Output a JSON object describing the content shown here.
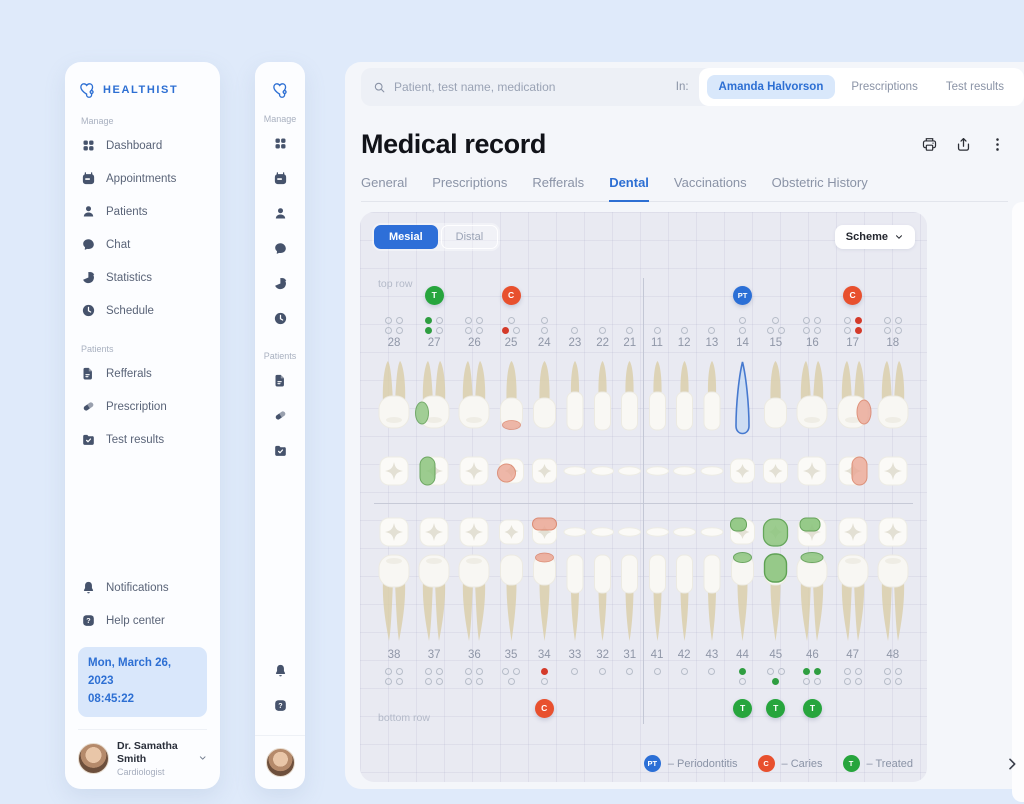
{
  "sidebar": {
    "brand": "HEALTHIST",
    "sections": [
      {
        "label": "Manage",
        "items": [
          {
            "label": "Dashboard",
            "icon": "dashboard-icon"
          },
          {
            "label": "Appointments",
            "icon": "appointments-icon"
          },
          {
            "label": "Patients",
            "icon": "patients-icon"
          },
          {
            "label": "Chat",
            "icon": "chat-icon"
          },
          {
            "label": "Statistics",
            "icon": "statistics-icon"
          },
          {
            "label": "Schedule",
            "icon": "schedule-icon"
          }
        ]
      },
      {
        "label": "Patients",
        "items": [
          {
            "label": "Refferals",
            "icon": "refferals-icon"
          },
          {
            "label": "Prescription",
            "icon": "prescription-icon"
          },
          {
            "label": "Test results",
            "icon": "test-results-icon"
          }
        ]
      }
    ],
    "footer_items": [
      {
        "label": "Notifications",
        "icon": "bell-icon"
      },
      {
        "label": "Help center",
        "icon": "help-icon"
      }
    ],
    "datetime": {
      "date": "Mon, March 26, 2023",
      "time": "08:45:22"
    },
    "profile": {
      "name": "Dr. Samatha Smith",
      "role": "Cardiologist"
    }
  },
  "search": {
    "placeholder": "Patient, test name, medication",
    "in_label": "In:",
    "chips": [
      {
        "label": "Amanda Halvorson",
        "active": true
      },
      {
        "label": "Prescriptions",
        "active": false
      },
      {
        "label": "Test results",
        "active": false
      }
    ]
  },
  "header": {
    "title": "Medical record",
    "action_icons": [
      "printer-icon",
      "share-icon",
      "kebab-icon"
    ],
    "tabs": [
      {
        "label": "General",
        "active": false
      },
      {
        "label": "Prescriptions",
        "active": false
      },
      {
        "label": "Refferals",
        "active": false
      },
      {
        "label": "Dental",
        "active": true
      },
      {
        "label": "Vaccinations",
        "active": false
      },
      {
        "label": "Obstetric History",
        "active": false
      }
    ]
  },
  "controls": {
    "view_toggle": [
      {
        "label": "Mesial",
        "active": true
      },
      {
        "label": "Distal",
        "active": false
      }
    ],
    "scheme_label": "Scheme"
  },
  "chart_data": {
    "type": "dental-chart",
    "top_row_label": "top row",
    "bottom_row_label": "bottom row",
    "colors": {
      "treated": "#27a53d",
      "caries": "#e8502e",
      "periodontitis": "#2b6fd6"
    },
    "legend_separator": "–",
    "legend": [
      {
        "code": "PT",
        "label": "Periodontitis",
        "color": "#2b6fd6"
      },
      {
        "code": "C",
        "label": "Caries",
        "color": "#e8502e"
      },
      {
        "code": "T",
        "label": "Treated",
        "color": "#27a53d"
      }
    ],
    "upper_teeth": [
      {
        "num": "28",
        "type": "molar",
        "dots": [
          [
            "o",
            "o"
          ],
          [
            "o",
            "o"
          ]
        ]
      },
      {
        "num": "27",
        "type": "molar",
        "dots": [
          [
            "g",
            "o"
          ],
          [
            "g",
            "o"
          ]
        ],
        "marker": "T",
        "highlight": "green-side"
      },
      {
        "num": "26",
        "type": "molar",
        "dots": [
          [
            "o",
            "o"
          ],
          [
            "o",
            "o"
          ]
        ]
      },
      {
        "num": "25",
        "type": "premolar",
        "dots": [
          [
            "o"
          ],
          [
            "r",
            "o"
          ]
        ],
        "marker": "C",
        "highlight": "red-bottom"
      },
      {
        "num": "24",
        "type": "premolar",
        "dots": [
          [
            "o"
          ],
          [
            "o"
          ]
        ]
      },
      {
        "num": "23",
        "type": "canine",
        "dots": [
          [
            "o"
          ]
        ]
      },
      {
        "num": "22",
        "type": "incisor",
        "dots": [
          [
            "o"
          ]
        ]
      },
      {
        "num": "21",
        "type": "incisor",
        "dots": [
          [
            "o"
          ]
        ]
      },
      {
        "num": "11",
        "type": "incisor",
        "dots": [
          [
            "o"
          ]
        ]
      },
      {
        "num": "12",
        "type": "incisor",
        "dots": [
          [
            "o"
          ]
        ]
      },
      {
        "num": "13",
        "type": "canine",
        "dots": [
          [
            "o"
          ]
        ]
      },
      {
        "num": "14",
        "type": "premolar",
        "dots": [
          [
            "o"
          ],
          [
            "o"
          ]
        ],
        "marker": "PT",
        "highlight": "blue-full"
      },
      {
        "num": "15",
        "type": "premolar",
        "dots": [
          [
            "o"
          ],
          [
            "o",
            "o"
          ]
        ]
      },
      {
        "num": "16",
        "type": "molar",
        "dots": [
          [
            "o",
            "o"
          ],
          [
            "o",
            "o"
          ]
        ]
      },
      {
        "num": "17",
        "type": "molar",
        "dots": [
          [
            "o",
            "r"
          ],
          [
            "o",
            "r"
          ]
        ],
        "marker": "C",
        "highlight": "red-side"
      },
      {
        "num": "18",
        "type": "molar",
        "dots": [
          [
            "o",
            "o"
          ],
          [
            "o",
            "o"
          ]
        ]
      }
    ],
    "lower_teeth": [
      {
        "num": "38",
        "type": "molar",
        "dots": [
          [
            "o",
            "o"
          ],
          [
            "o",
            "o"
          ]
        ]
      },
      {
        "num": "37",
        "type": "molar",
        "dots": [
          [
            "o",
            "o"
          ],
          [
            "o",
            "o"
          ]
        ]
      },
      {
        "num": "36",
        "type": "molar",
        "dots": [
          [
            "o",
            "o"
          ],
          [
            "o",
            "o"
          ]
        ]
      },
      {
        "num": "35",
        "type": "premolar",
        "dots": [
          [
            "o",
            "o"
          ],
          [
            "o"
          ]
        ]
      },
      {
        "num": "34",
        "type": "premolar",
        "dots": [
          [
            "r"
          ],
          [
            "o"
          ]
        ],
        "marker": "C",
        "highlight": "red-top"
      },
      {
        "num": "33",
        "type": "canine",
        "dots": [
          [
            "o"
          ]
        ]
      },
      {
        "num": "32",
        "type": "incisor",
        "dots": [
          [
            "o"
          ]
        ]
      },
      {
        "num": "31",
        "type": "incisor",
        "dots": [
          [
            "o"
          ]
        ]
      },
      {
        "num": "41",
        "type": "incisor",
        "dots": [
          [
            "o"
          ]
        ]
      },
      {
        "num": "42",
        "type": "incisor",
        "dots": [
          [
            "o"
          ]
        ]
      },
      {
        "num": "43",
        "type": "canine",
        "dots": [
          [
            "o"
          ]
        ]
      },
      {
        "num": "44",
        "type": "premolar",
        "dots": [
          [
            "g"
          ],
          [
            "o"
          ]
        ],
        "marker": "T",
        "highlight": "green-top"
      },
      {
        "num": "45",
        "type": "premolar",
        "dots": [
          [
            "o",
            "o"
          ],
          [
            "g"
          ]
        ],
        "marker": "T",
        "highlight": "green-full"
      },
      {
        "num": "46",
        "type": "molar",
        "dots": [
          [
            "g",
            "g"
          ],
          [
            "o",
            "o"
          ]
        ],
        "marker": "T",
        "highlight": "green-top"
      },
      {
        "num": "47",
        "type": "molar",
        "dots": [
          [
            "o",
            "o"
          ],
          [
            "o",
            "o"
          ]
        ]
      },
      {
        "num": "48",
        "type": "molar",
        "dots": [
          [
            "o",
            "o"
          ],
          [
            "o",
            "o"
          ]
        ]
      }
    ]
  }
}
